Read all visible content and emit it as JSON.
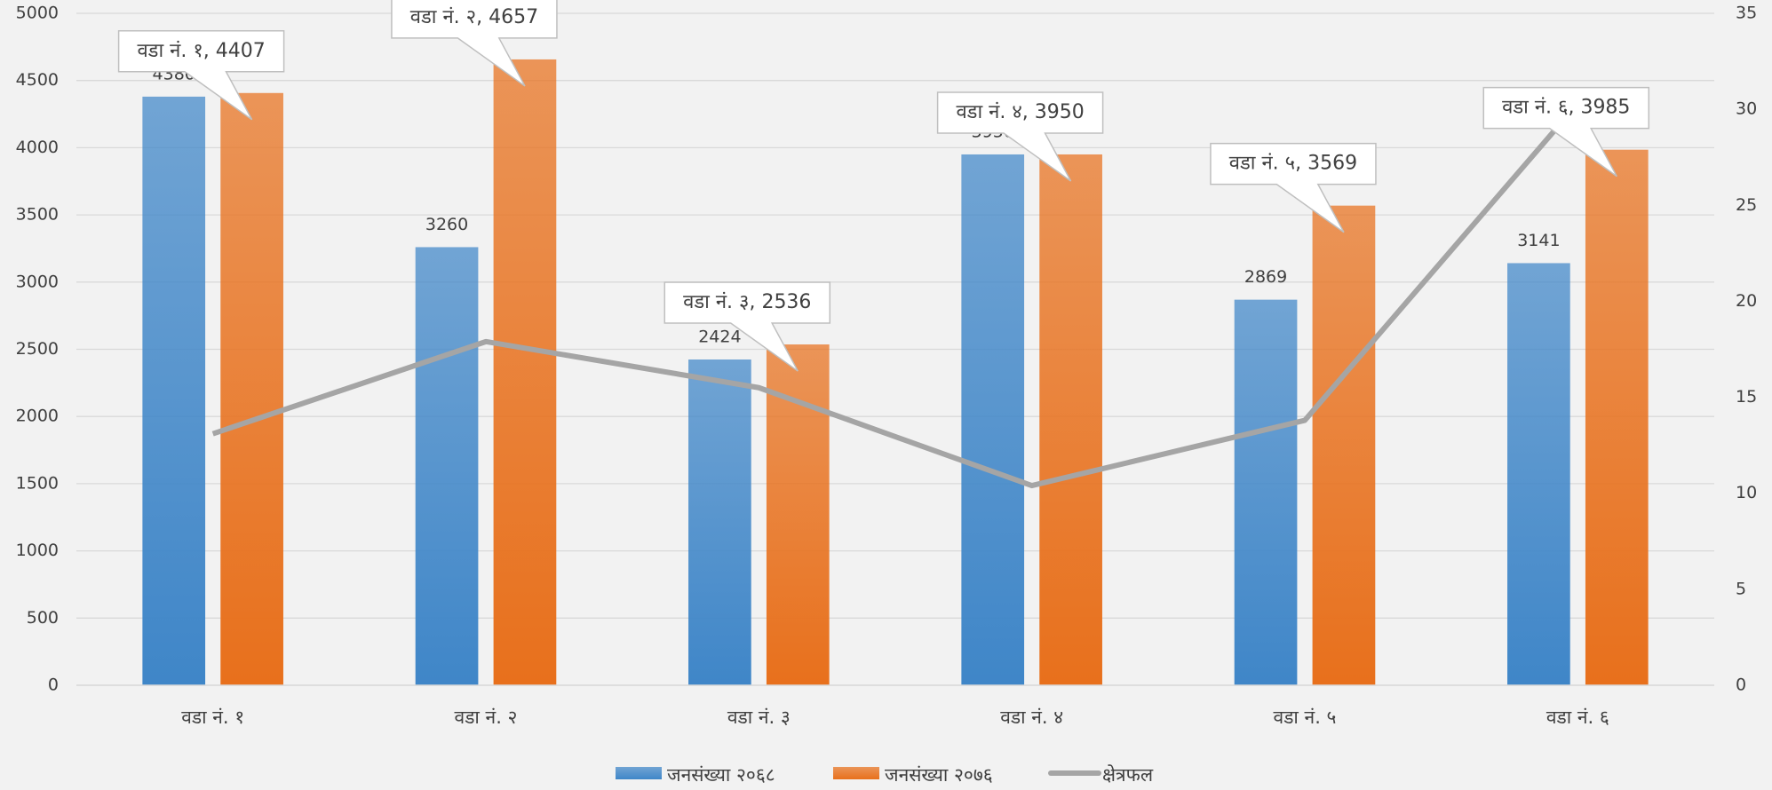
{
  "chart_data": {
    "type": "bar",
    "categories": [
      "वडा नं. १",
      "वडा नं. २",
      "वडा नं. ३",
      "वडा नं. ४",
      "वडा नं. ५",
      "वडा नं. ६"
    ],
    "series": [
      {
        "name": "जनसंख्या २०६८",
        "color": "#3f86c8",
        "type": "bar",
        "values": [
          4380,
          3260,
          2424,
          3950,
          2869,
          3141
        ]
      },
      {
        "name": "जनसंख्या २०७६",
        "color": "#e8701c",
        "type": "bar",
        "values": [
          4407,
          4657,
          2536,
          3950,
          3569,
          3985
        ],
        "value_labels": [
          "वडा नं. १, 4407",
          "वडा नं. २, 4657",
          "वडा नं. ३, 2536",
          "वडा नं. ४, 3950",
          "वडा नं. ५, 3569",
          "वडा नं. ६, 3985"
        ]
      },
      {
        "name": "क्षेत्रफल",
        "color": "#a5a5a5",
        "type": "line",
        "axis": "y2",
        "values": [
          13.1,
          17.9,
          15.5,
          10.4,
          13.8,
          30.3
        ]
      }
    ],
    "ylim": [
      0,
      5000
    ],
    "yticks": [
      0,
      500,
      1000,
      1500,
      2000,
      2500,
      3000,
      3500,
      4000,
      4500,
      5000
    ],
    "y2lim": [
      0,
      35
    ],
    "y2ticks": [
      0,
      5,
      10,
      15,
      20,
      25,
      30,
      35
    ],
    "grid": true,
    "legend": "bottom"
  }
}
